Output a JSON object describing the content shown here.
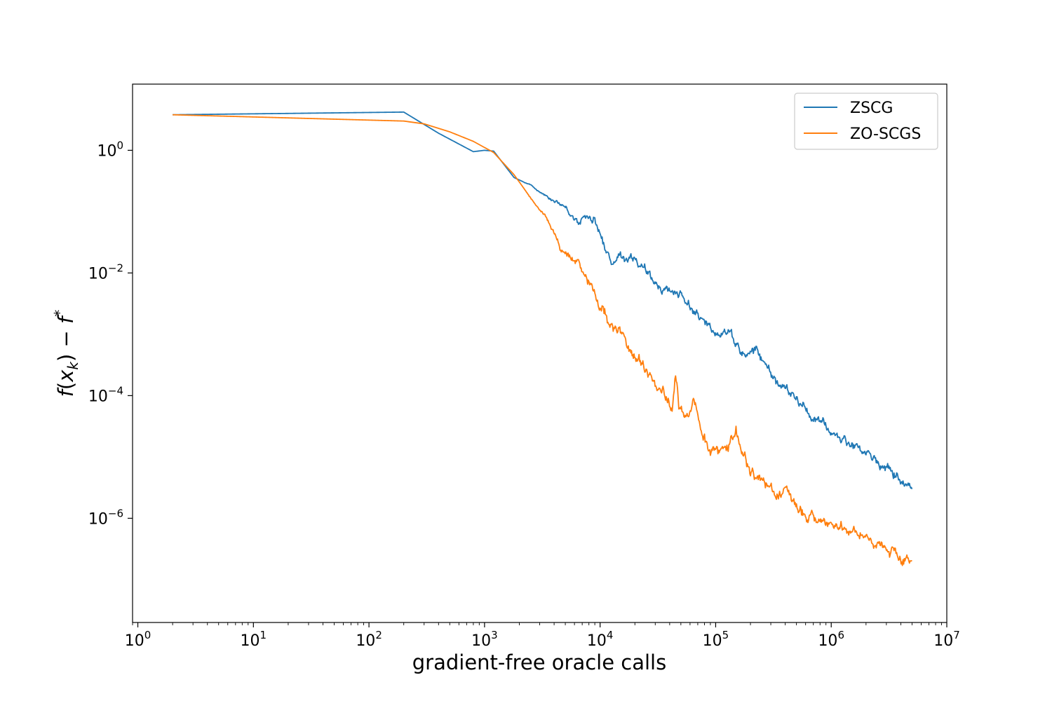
{
  "chart_data": {
    "type": "line",
    "xlabel": "gradient-free oracle calls",
    "ylabel": "f(x_k) − f*",
    "x_scale": "log",
    "y_scale": "log",
    "xlim": [
      0.9,
      10000000
    ],
    "ylim": [
      2e-08,
      12
    ],
    "x_ticks": [
      1,
      10,
      100,
      1000,
      10000,
      100000,
      1000000,
      10000000
    ],
    "x_tick_labels": [
      {
        "base": "10",
        "exp": "0"
      },
      {
        "base": "10",
        "exp": "1"
      },
      {
        "base": "10",
        "exp": "2"
      },
      {
        "base": "10",
        "exp": "3"
      },
      {
        "base": "10",
        "exp": "4"
      },
      {
        "base": "10",
        "exp": "5"
      },
      {
        "base": "10",
        "exp": "6"
      },
      {
        "base": "10",
        "exp": "7"
      }
    ],
    "y_ticks": [
      1,
      0.01,
      0.0001,
      1e-06
    ],
    "y_tick_labels": [
      {
        "base": "10",
        "exp": "0"
      },
      {
        "base": "10",
        "exp": "−2"
      },
      {
        "base": "10",
        "exp": "−4"
      },
      {
        "base": "10",
        "exp": "−6"
      }
    ],
    "grid": false,
    "legend_position": "top-right",
    "series": [
      {
        "name": "ZSCG",
        "color": "#1f77b4",
        "noise": 0.09,
        "points": [
          [
            2,
            3.8
          ],
          [
            200,
            4.2
          ],
          [
            400,
            1.9
          ],
          [
            800,
            0.95
          ],
          [
            1000,
            1.0
          ],
          [
            1200,
            0.97
          ],
          [
            1800,
            0.36
          ],
          [
            2500,
            0.27
          ],
          [
            3500,
            0.18
          ],
          [
            5000,
            0.12
          ],
          [
            6500,
            0.065
          ],
          [
            7000,
            0.082
          ],
          [
            8000,
            0.088
          ],
          [
            9000,
            0.077
          ],
          [
            10000,
            0.044
          ],
          [
            11000,
            0.024
          ],
          [
            12500,
            0.016
          ],
          [
            15000,
            0.019
          ],
          [
            20000,
            0.018
          ],
          [
            28000,
            0.0075
          ],
          [
            40000,
            0.0053
          ],
          [
            50000,
            0.0045
          ],
          [
            65000,
            0.0025
          ],
          [
            80000,
            0.0014
          ],
          [
            100000,
            0.0011
          ],
          [
            130000,
            0.0012
          ],
          [
            150000,
            0.00075
          ],
          [
            180000,
            0.00042
          ],
          [
            220000,
            0.00058
          ],
          [
            280000,
            0.00028
          ],
          [
            350000,
            0.00016
          ],
          [
            500000,
            8.5e-05
          ],
          [
            700000,
            4.5e-05
          ],
          [
            1000000,
            2.5e-05
          ],
          [
            2000000,
            1.2e-05
          ],
          [
            3000000,
            6.5e-06
          ],
          [
            5000000,
            3e-06
          ]
        ]
      },
      {
        "name": "ZO-SCGS",
        "color": "#ff7f0e",
        "noise": 0.11,
        "points": [
          [
            2,
            3.8
          ],
          [
            200,
            3.0
          ],
          [
            300,
            2.7
          ],
          [
            500,
            2.0
          ],
          [
            800,
            1.4
          ],
          [
            1200,
            0.92
          ],
          [
            1800,
            0.4
          ],
          [
            2500,
            0.17
          ],
          [
            3500,
            0.075
          ],
          [
            4500,
            0.027
          ],
          [
            5500,
            0.017
          ],
          [
            6500,
            0.016
          ],
          [
            8000,
            0.0075
          ],
          [
            10000,
            0.0032
          ],
          [
            12000,
            0.0017
          ],
          [
            15000,
            0.0011
          ],
          [
            18000,
            0.00055
          ],
          [
            22000,
            0.00035
          ],
          [
            28000,
            0.00018
          ],
          [
            35000,
            0.00014
          ],
          [
            42000,
            6.5e-05
          ],
          [
            45000,
            0.00025
          ],
          [
            48000,
            6e-05
          ],
          [
            58000,
            4.8e-05
          ],
          [
            65000,
            0.00011
          ],
          [
            75000,
            3.5e-05
          ],
          [
            90000,
            1.1e-05
          ],
          [
            110000,
            1.2e-05
          ],
          [
            130000,
            1.7e-05
          ],
          [
            150000,
            3.5e-05
          ],
          [
            170000,
            1.1e-05
          ],
          [
            200000,
            5.5e-06
          ],
          [
            280000,
            3.5e-06
          ],
          [
            500000,
            1.7e-06
          ],
          [
            800000,
            7.5e-07
          ],
          [
            1200000,
            8.5e-07
          ],
          [
            2000000,
            4.8e-07
          ],
          [
            3000000,
            3.2e-07
          ],
          [
            5000000,
            2e-07
          ]
        ]
      }
    ]
  }
}
